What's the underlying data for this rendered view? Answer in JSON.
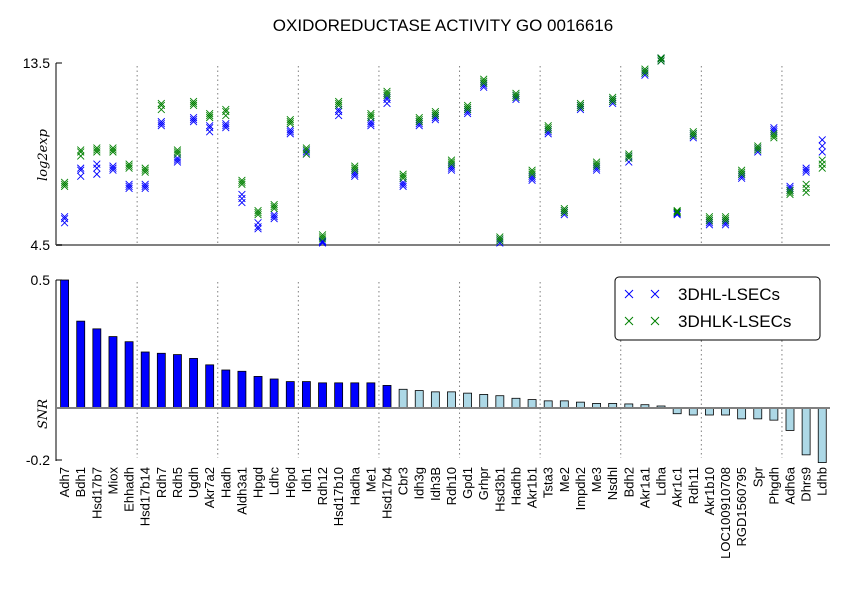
{
  "chart_data": [
    {
      "type": "scatter",
      "title": "OXIDOREDUCTASE ACTIVITY GO 0016616",
      "ylabel": "log2exp",
      "ylim": [
        4.5,
        13.5
      ],
      "yticks": [
        "4.5",
        "13.5"
      ],
      "group_separators_after_index": [
        4,
        9,
        14,
        19,
        24,
        29,
        34,
        39,
        44
      ],
      "categories": [
        "Adh7",
        "Bdh1",
        "Hsd17b7",
        "Miox",
        "Ehhadh",
        "Hsd17b14",
        "Rdh7",
        "Rdh5",
        "Ugdh",
        "Akr7a2",
        "Hadh",
        "Aldh3a1",
        "Hpgd",
        "Ldhc",
        "H6pd",
        "Idh1",
        "Rdh12",
        "Hsd17b10",
        "Hadha",
        "Me1",
        "Hsd17b4",
        "Cbr3",
        "Idh3g",
        "Idh3B",
        "Rdh10",
        "Gpd1",
        "Grhpr",
        "Hsd3b1",
        "Hadhb",
        "Akr1b1",
        "Tsta3",
        "Me2",
        "Impdh2",
        "Me3",
        "Nsdhl",
        "Bdh2",
        "Akr1a1",
        "Ldha",
        "Akr1c1",
        "Rdh11",
        "Akr1b10",
        "LOC100910708",
        "RGD1560795",
        "Spr",
        "Phgdh",
        "Adh6a",
        "Dhrs9",
        "Ldhb"
      ],
      "series": [
        {
          "name": "3DHL-LSECs",
          "color": "#0000ff",
          "values": [
            [
              5.6,
              5.8,
              5.9
            ],
            [
              7.9,
              8.2,
              8.3
            ],
            [
              8.0,
              8.3,
              8.5
            ],
            [
              8.2,
              8.3,
              8.4
            ],
            [
              7.3,
              7.4,
              7.5
            ],
            [
              7.3,
              7.4,
              7.5
            ],
            [
              10.4,
              10.5,
              10.6
            ],
            [
              8.6,
              8.7,
              8.8
            ],
            [
              10.6,
              10.7,
              10.8
            ],
            [
              10.1,
              10.3,
              10.4
            ],
            [
              10.3,
              10.4,
              10.5
            ],
            [
              6.6,
              6.8,
              7.0
            ],
            [
              5.3,
              5.4,
              5.6
            ],
            [
              5.8,
              5.9,
              6.0
            ],
            [
              10.0,
              10.1,
              10.2
            ],
            [
              9.0,
              9.1,
              9.2
            ],
            [
              4.6,
              4.65,
              4.7
            ],
            [
              10.9,
              11.1,
              11.2
            ],
            [
              7.9,
              8.0,
              8.1
            ],
            [
              10.4,
              10.5,
              10.6
            ],
            [
              11.5,
              11.7,
              11.8
            ],
            [
              7.4,
              7.5,
              7.6
            ],
            [
              10.4,
              10.5,
              10.6
            ],
            [
              10.7,
              10.8,
              10.9
            ],
            [
              8.2,
              8.3,
              8.4
            ],
            [
              11.0,
              11.1,
              11.2
            ],
            [
              12.3,
              12.4,
              12.5
            ],
            [
              4.6,
              4.7,
              4.8
            ],
            [
              11.7,
              11.8,
              11.9
            ],
            [
              7.7,
              7.8,
              7.9
            ],
            [
              10.0,
              10.1,
              10.2
            ],
            [
              6.0,
              6.1,
              6.2
            ],
            [
              11.2,
              11.3,
              11.4
            ],
            [
              8.2,
              8.3,
              8.4
            ],
            [
              11.5,
              11.6,
              11.7
            ],
            [
              8.6,
              8.8,
              8.9
            ],
            [
              12.9,
              13.0,
              13.1
            ],
            [
              13.6,
              13.7,
              13.75
            ],
            [
              6.0,
              6.05,
              6.1
            ],
            [
              9.8,
              9.9,
              10.0
            ],
            [
              5.5,
              5.6,
              5.7
            ],
            [
              5.5,
              5.6,
              5.7
            ],
            [
              7.8,
              7.9,
              8.0
            ],
            [
              9.1,
              9.2,
              9.3
            ],
            [
              10.1,
              10.2,
              10.3
            ],
            [
              7.2,
              7.3,
              7.4
            ],
            [
              8.1,
              8.2,
              8.3
            ],
            [
              9.1,
              9.4,
              9.7
            ]
          ]
        },
        {
          "name": "3DHLK-LSECs",
          "color": "#008000",
          "values": [
            [
              7.4,
              7.5,
              7.6
            ],
            [
              8.9,
              9.1,
              9.2
            ],
            [
              9.1,
              9.2,
              9.3
            ],
            [
              9.1,
              9.2,
              9.3
            ],
            [
              8.3,
              8.4,
              8.5
            ],
            [
              8.1,
              8.2,
              8.3
            ],
            [
              11.2,
              11.4,
              11.5
            ],
            [
              9.0,
              9.1,
              9.2
            ],
            [
              11.4,
              11.5,
              11.6
            ],
            [
              10.8,
              10.9,
              11.0
            ],
            [
              10.9,
              11.1,
              11.2
            ],
            [
              7.5,
              7.6,
              7.7
            ],
            [
              6.0,
              6.1,
              6.2
            ],
            [
              6.3,
              6.4,
              6.5
            ],
            [
              10.5,
              10.6,
              10.7
            ],
            [
              9.0,
              9.2,
              9.3
            ],
            [
              4.8,
              4.9,
              5.0
            ],
            [
              11.4,
              11.5,
              11.6
            ],
            [
              8.2,
              8.3,
              8.4
            ],
            [
              10.8,
              10.9,
              11.0
            ],
            [
              11.9,
              12.0,
              12.1
            ],
            [
              7.8,
              7.9,
              8.0
            ],
            [
              10.6,
              10.7,
              10.8
            ],
            [
              10.9,
              11.0,
              11.1
            ],
            [
              8.5,
              8.6,
              8.7
            ],
            [
              11.2,
              11.3,
              11.4
            ],
            [
              12.5,
              12.6,
              12.7
            ],
            [
              4.7,
              4.8,
              4.9
            ],
            [
              11.8,
              11.9,
              12.0
            ],
            [
              8.0,
              8.1,
              8.2
            ],
            [
              10.2,
              10.3,
              10.4
            ],
            [
              6.1,
              6.2,
              6.3
            ],
            [
              11.3,
              11.4,
              11.5
            ],
            [
              8.4,
              8.5,
              8.6
            ],
            [
              11.6,
              11.7,
              11.8
            ],
            [
              8.8,
              8.9,
              9.0
            ],
            [
              13.0,
              13.1,
              13.2
            ],
            [
              13.6,
              13.7,
              13.75
            ],
            [
              6.1,
              6.15,
              6.2
            ],
            [
              9.9,
              10.0,
              10.1
            ],
            [
              5.7,
              5.8,
              5.9
            ],
            [
              5.7,
              5.8,
              5.9
            ],
            [
              8.0,
              8.1,
              8.2
            ],
            [
              9.2,
              9.3,
              9.4
            ],
            [
              9.8,
              9.9,
              10.0
            ],
            [
              7.0,
              7.1,
              7.2
            ],
            [
              7.1,
              7.3,
              7.5
            ],
            [
              8.3,
              8.5,
              8.7
            ]
          ]
        }
      ],
      "legend": {
        "placement": "right",
        "entries": [
          "3DHL-LSECs",
          "3DHLK-LSECs"
        ]
      }
    },
    {
      "type": "bar",
      "ylabel": "SNR",
      "ylim": [
        -0.2,
        0.5
      ],
      "yticks": [
        "0.5",
        "-0.2"
      ],
      "categories": [
        "Adh7",
        "Bdh1",
        "Hsd17b7",
        "Miox",
        "Ehhadh",
        "Hsd17b14",
        "Rdh7",
        "Rdh5",
        "Ugdh",
        "Akr7a2",
        "Hadh",
        "Aldh3a1",
        "Hpgd",
        "Ldhc",
        "H6pd",
        "Idh1",
        "Rdh12",
        "Hsd17b10",
        "Hadha",
        "Me1",
        "Hsd17b4",
        "Cbr3",
        "Idh3g",
        "Idh3B",
        "Rdh10",
        "Gpd1",
        "Grhpr",
        "Hsd3b1",
        "Hadhb",
        "Akr1b1",
        "Tsta3",
        "Me2",
        "Impdh2",
        "Me3",
        "Nsdhl",
        "Bdh2",
        "Akr1a1",
        "Ldha",
        "Akr1c1",
        "Rdh11",
        "Akr1b10",
        "LOC100910708",
        "RGD1560795",
        "Spr",
        "Phgdh",
        "Adh6a",
        "Dhrs9",
        "Ldhb"
      ],
      "values": [
        0.5,
        0.34,
        0.31,
        0.28,
        0.26,
        0.22,
        0.215,
        0.21,
        0.195,
        0.17,
        0.15,
        0.145,
        0.125,
        0.115,
        0.105,
        0.105,
        0.1,
        0.1,
        0.1,
        0.1,
        0.09,
        0.075,
        0.07,
        0.065,
        0.065,
        0.06,
        0.055,
        0.05,
        0.04,
        0.035,
        0.03,
        0.03,
        0.025,
        0.02,
        0.02,
        0.018,
        0.015,
        0.01,
        -0.02,
        -0.025,
        -0.025,
        -0.025,
        -0.04,
        -0.04,
        -0.045,
        -0.085,
        -0.18,
        -0.21
      ],
      "highlight_count": 21,
      "colors": {
        "positive_highlight": "#0000ff",
        "other": "#add8e6"
      }
    }
  ]
}
